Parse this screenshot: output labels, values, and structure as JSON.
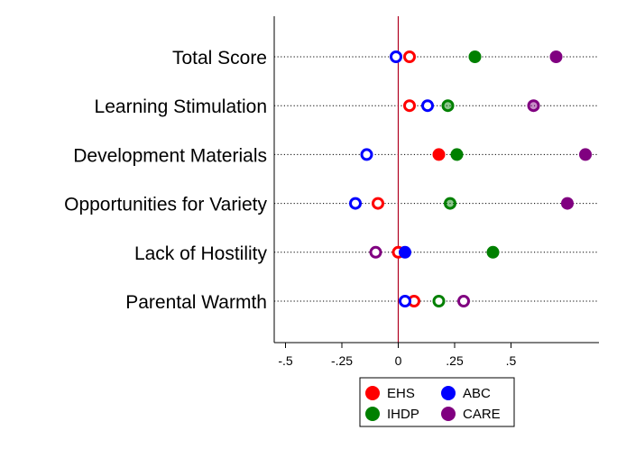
{
  "chart_data": {
    "type": "scatter",
    "categories": [
      "Total Score",
      "Learning Stimulation",
      "Development Materials",
      "Opportunities for Variety",
      "Lack of Hostility",
      "Parental Warmth"
    ],
    "x_ticks": [
      -0.5,
      -0.25,
      0,
      0.25,
      0.5
    ],
    "x_tick_labels": [
      "-.5",
      "-.25",
      "0",
      ".25",
      ".5"
    ],
    "xlim": [
      -0.55,
      0.89
    ],
    "reference_line_x": 0,
    "grid": "dotted horizontal lines at each category",
    "legend_position": "bottom",
    "series": [
      {
        "name": "EHS",
        "color": "#ff0000",
        "points": [
          {
            "category": "Total Score",
            "x": 0.05,
            "style": "hollow"
          },
          {
            "category": "Learning Stimulation",
            "x": 0.05,
            "style": "hollow"
          },
          {
            "category": "Development Materials",
            "x": 0.18,
            "style": "filled"
          },
          {
            "category": "Opportunities for Variety",
            "x": -0.09,
            "style": "hollow"
          },
          {
            "category": "Lack of Hostility",
            "x": 0.0,
            "style": "hollow"
          },
          {
            "category": "Parental Warmth",
            "x": 0.07,
            "style": "hollow"
          }
        ]
      },
      {
        "name": "ABC",
        "color": "#0000ff",
        "points": [
          {
            "category": "Total Score",
            "x": -0.01,
            "style": "hollow"
          },
          {
            "category": "Learning Stimulation",
            "x": 0.13,
            "style": "hollow"
          },
          {
            "category": "Development Materials",
            "x": -0.14,
            "style": "hollow"
          },
          {
            "category": "Opportunities for Variety",
            "x": -0.19,
            "style": "hollow"
          },
          {
            "category": "Lack of Hostility",
            "x": 0.03,
            "style": "filled"
          },
          {
            "category": "Parental Warmth",
            "x": 0.03,
            "style": "hollow"
          }
        ]
      },
      {
        "name": "IHDP",
        "color": "#008000",
        "points": [
          {
            "category": "Total Score",
            "x": 0.34,
            "style": "filled"
          },
          {
            "category": "Learning Stimulation",
            "x": 0.22,
            "style": "light"
          },
          {
            "category": "Development Materials",
            "x": 0.26,
            "style": "filled"
          },
          {
            "category": "Opportunities for Variety",
            "x": 0.23,
            "style": "light"
          },
          {
            "category": "Lack of Hostility",
            "x": 0.42,
            "style": "filled"
          },
          {
            "category": "Parental Warmth",
            "x": 0.18,
            "style": "hollow"
          }
        ]
      },
      {
        "name": "CARE",
        "color": "#800080",
        "points": [
          {
            "category": "Total Score",
            "x": 0.7,
            "style": "filled"
          },
          {
            "category": "Learning Stimulation",
            "x": 0.6,
            "style": "light"
          },
          {
            "category": "Development Materials",
            "x": 0.83,
            "style": "filled"
          },
          {
            "category": "Opportunities for Variety",
            "x": 0.75,
            "style": "filled"
          },
          {
            "category": "Lack of Hostility",
            "x": -0.1,
            "style": "hollow"
          },
          {
            "category": "Parental Warmth",
            "x": 0.29,
            "style": "hollow"
          }
        ]
      }
    ]
  }
}
